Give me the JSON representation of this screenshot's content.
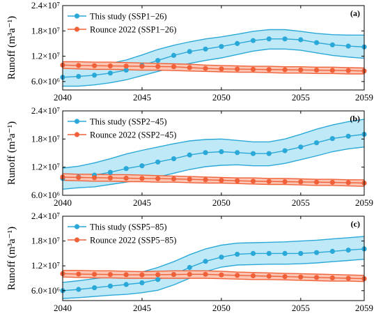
{
  "colors": {
    "this_study": "#2aa8d8",
    "this_study_band": "#bfe9f7",
    "rounce": "#f0613a",
    "rounce_band": "#fbc6b3"
  },
  "chart_data": [
    {
      "type": "line",
      "panel_label": "(a)",
      "ylabel": "Runoff (m³a⁻¹)",
      "xlim": [
        2040,
        2059
      ],
      "ylim": [
        4000000,
        24000000
      ],
      "x_ticks": [
        "2040",
        "2045",
        "2050",
        "2055",
        "2059"
      ],
      "y_ticks": [
        "6.0×10⁶",
        "1.2×10⁷",
        "1.8×10⁷",
        "2.4×10⁷"
      ],
      "legend_position": "top-left",
      "x": [
        2040,
        2041,
        2042,
        2043,
        2044,
        2045,
        2046,
        2047,
        2048,
        2049,
        2050,
        2051,
        2052,
        2053,
        2054,
        2055,
        2056,
        2057,
        2058,
        2059
      ],
      "series": [
        {
          "name": "This study (SSP1−26)",
          "values": [
            7000000,
            7200000,
            7500000,
            8000000,
            8700000,
            9800000,
            11000000,
            12200000,
            13100000,
            13700000,
            14300000,
            15000000,
            15700000,
            16100000,
            16100000,
            15900000,
            15200000,
            14700000,
            14400000,
            14200000
          ],
          "upper": [
            9300000,
            9500000,
            9800000,
            10300000,
            11100000,
            12300000,
            13600000,
            14600000,
            15400000,
            16100000,
            16600000,
            17200000,
            17900000,
            18300000,
            18300000,
            17900000,
            17400000,
            17100000,
            17000000,
            17000000
          ],
          "lower": [
            4900000,
            4900000,
            5200000,
            5700000,
            6400000,
            7400000,
            8400000,
            9400000,
            10300000,
            11000000,
            11600000,
            12400000,
            13200000,
            13700000,
            13700000,
            13400000,
            12800000,
            12200000,
            11800000,
            11500000
          ]
        },
        {
          "name": "Rounce 2022 (SSP1−26)",
          "values": [
            9900000,
            9800000,
            9750000,
            9700000,
            9650000,
            9600000,
            9550000,
            9500000,
            9300000,
            9100000,
            9000000,
            8950000,
            8900000,
            8850000,
            8800000,
            8750000,
            8700000,
            8650000,
            8600000,
            8500000
          ],
          "upper": [
            10700000,
            10700000,
            10600000,
            10600000,
            10500000,
            10400000,
            10300000,
            10200000,
            10100000,
            9900000,
            9800000,
            9700000,
            9600000,
            9600000,
            9500000,
            9500000,
            9400000,
            9400000,
            9300000,
            9200000
          ],
          "lower": [
            9100000,
            9000000,
            8900000,
            8900000,
            8800000,
            8700000,
            8700000,
            8600000,
            8500000,
            8400000,
            8300000,
            8200000,
            8200000,
            8100000,
            8000000,
            8000000,
            7900000,
            7900000,
            7800000,
            7800000
          ]
        }
      ]
    },
    {
      "type": "line",
      "panel_label": "(b)",
      "ylabel": "Runoff (m³a⁻¹)",
      "xlim": [
        2040,
        2059
      ],
      "ylim": [
        6000000,
        24000000
      ],
      "x_ticks": [
        "2040",
        "2045",
        "2050",
        "2055",
        "2059"
      ],
      "y_ticks": [
        "6.0×10⁶",
        "1.2×10⁷",
        "1.8×10⁷",
        "2.4×10⁷"
      ],
      "legend_position": "top-left",
      "x": [
        2040,
        2041,
        2042,
        2043,
        2044,
        2045,
        2046,
        2047,
        2048,
        2049,
        2050,
        2051,
        2052,
        2053,
        2054,
        2055,
        2056,
        2057,
        2058,
        2059
      ],
      "series": [
        {
          "name": "This study (SSP2−45)",
          "values": [
            9600000,
            9900000,
            10300000,
            10900000,
            11700000,
            12300000,
            13100000,
            13800000,
            14600000,
            15100000,
            15300000,
            15100000,
            14900000,
            14900000,
            15500000,
            16300000,
            17200000,
            18100000,
            18600000,
            19000000
          ],
          "upper": [
            11800000,
            12200000,
            12900000,
            13800000,
            14800000,
            15600000,
            16300000,
            17000000,
            17600000,
            17900000,
            18000000,
            17700000,
            17400000,
            17400000,
            18000000,
            19000000,
            20100000,
            21000000,
            21700000,
            22200000
          ],
          "lower": [
            7300000,
            7600000,
            7800000,
            8300000,
            8800000,
            9300000,
            9900000,
            10700000,
            11500000,
            12100000,
            12400000,
            12500000,
            12300000,
            12300000,
            12800000,
            13600000,
            14400000,
            15300000,
            15900000,
            16300000
          ]
        },
        {
          "name": "Rounce 2022 (SSP2−45)",
          "values": [
            9900000,
            9800000,
            9750000,
            9700000,
            9650000,
            9600000,
            9550000,
            9500000,
            9400000,
            9300000,
            9200000,
            9100000,
            9000000,
            8950000,
            8900000,
            8850000,
            8800000,
            8750000,
            8700000,
            8600000
          ],
          "upper": [
            10600000,
            10500000,
            10500000,
            10400000,
            10400000,
            10300000,
            10200000,
            10100000,
            10000000,
            9900000,
            9800000,
            9700000,
            9700000,
            9600000,
            9600000,
            9500000,
            9400000,
            9400000,
            9300000,
            9300000
          ],
          "lower": [
            9200000,
            9100000,
            9000000,
            9000000,
            8900000,
            8900000,
            8800000,
            8800000,
            8700000,
            8600000,
            8600000,
            8500000,
            8400000,
            8300000,
            8300000,
            8200000,
            8100000,
            8100000,
            8000000,
            7900000
          ]
        }
      ]
    },
    {
      "type": "line",
      "panel_label": "(c)",
      "ylabel": "Runoff (m³a⁻¹)",
      "xlim": [
        2040,
        2059
      ],
      "ylim": [
        3600000,
        24000000
      ],
      "x_ticks": [
        "2040",
        "2045",
        "2050",
        "2055",
        "2059"
      ],
      "y_ticks": [
        "6.0×10⁶",
        "1.2×10⁷",
        "1.8×10⁷",
        "2.4×10⁷"
      ],
      "legend_position": "top-left",
      "x": [
        2040,
        2041,
        2042,
        2043,
        2044,
        2045,
        2046,
        2047,
        2048,
        2049,
        2050,
        2051,
        2052,
        2053,
        2054,
        2055,
        2056,
        2057,
        2058,
        2059
      ],
      "series": [
        {
          "name": "This study (SSP5−85)",
          "values": [
            6000000,
            6300000,
            6700000,
            7100000,
            7500000,
            7900000,
            8700000,
            9900000,
            11600000,
            13100000,
            14100000,
            14800000,
            15000000,
            15000000,
            15000000,
            15000000,
            15200000,
            15500000,
            15800000,
            16100000
          ],
          "upper": [
            8000000,
            8400000,
            8900000,
            9400000,
            10000000,
            10500000,
            11600000,
            13000000,
            14700000,
            16100000,
            17000000,
            17500000,
            17600000,
            17700000,
            17800000,
            18000000,
            18200000,
            18500000,
            18800000,
            19100000
          ],
          "lower": [
            4100000,
            4300000,
            4600000,
            4900000,
            5100000,
            5500000,
            6100000,
            7400000,
            9000000,
            10600000,
            11700000,
            12200000,
            12300000,
            12400000,
            12400000,
            12500000,
            12700000,
            13000000,
            13300000,
            13600000
          ]
        },
        {
          "name": "Rounce 2022 (SSP5−85)",
          "values": [
            10100000,
            10000000,
            9950000,
            9900000,
            9850000,
            9800000,
            9850000,
            9900000,
            9950000,
            9950000,
            9800000,
            9700000,
            9600000,
            9500000,
            9400000,
            9300000,
            9200000,
            9100000,
            9000000,
            8900000
          ],
          "upper": [
            10900000,
            10900000,
            10800000,
            10800000,
            10700000,
            10600000,
            10700000,
            10800000,
            10800000,
            10800000,
            10700000,
            10500000,
            10400000,
            10300000,
            10200000,
            10100000,
            10000000,
            9900000,
            9800000,
            9700000
          ],
          "lower": [
            9300000,
            9200000,
            9100000,
            9100000,
            9000000,
            9000000,
            9000000,
            9000000,
            9000000,
            9000000,
            8900000,
            8800000,
            8700000,
            8700000,
            8600000,
            8500000,
            8400000,
            8300000,
            8300000,
            8200000
          ]
        }
      ]
    }
  ]
}
